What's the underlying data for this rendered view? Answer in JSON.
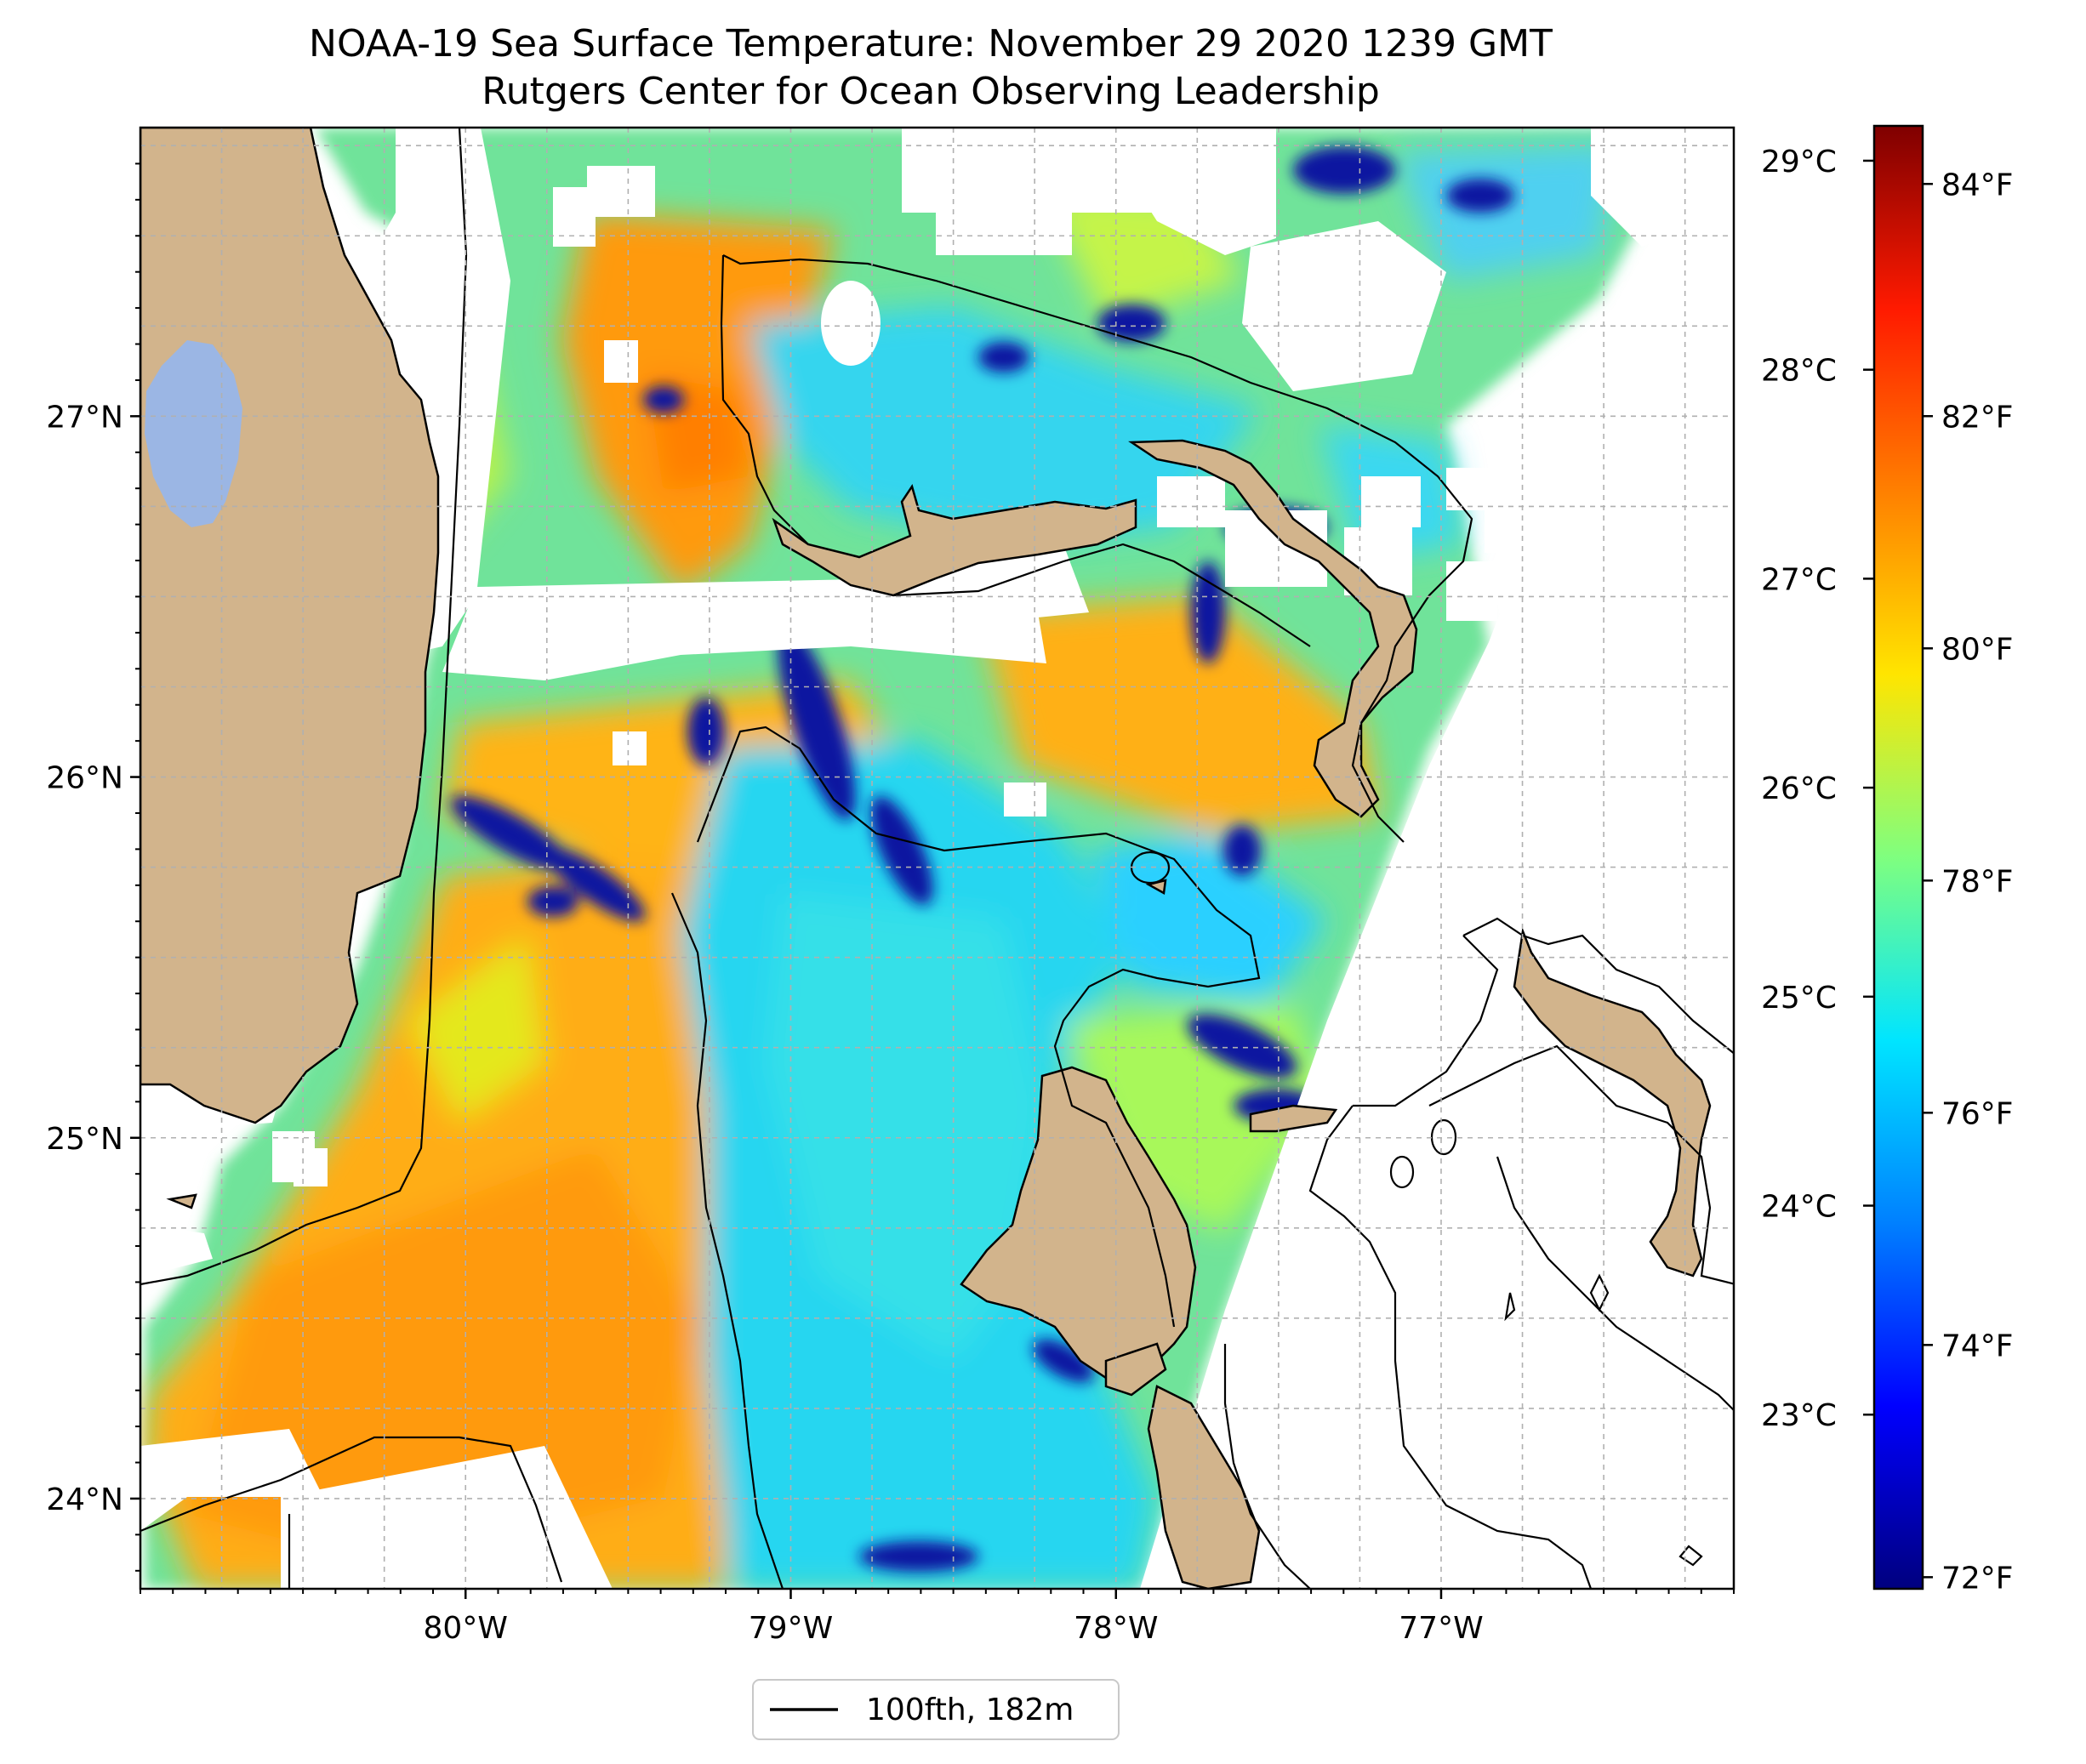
{
  "title": "NOAA-19 Sea Surface Temperature: November 29 2020 1239 GMT",
  "subtitle": "Rutgers Center for Ocean Observing Leadership",
  "legend": {
    "label": "100fth, 182m"
  },
  "colors": {
    "land": "#d2b48c",
    "lake": "#9bb6e4",
    "coast": "#000000",
    "grid": "#b0b0b0",
    "colormap": [
      "#00007f",
      "#0000ff",
      "#0080ff",
      "#00e5ff",
      "#7fff7f",
      "#ffe500",
      "#ff8000",
      "#ff1a00",
      "#7f0000"
    ]
  },
  "chart_data": {
    "type": "heatmap",
    "title": "NOAA-19 Sea Surface Temperature: November 29 2020 1239 GMT",
    "subtitle": "Rutgers Center for Ocean Observing Leadership",
    "x_axis": {
      "ticks": [
        -80,
        -79,
        -78,
        -77
      ],
      "tick_labels": [
        "80°W",
        "79°W",
        "78°W",
        "77°W"
      ],
      "range": [
        -81.0,
        -76.1
      ]
    },
    "y_axis": {
      "ticks": [
        24,
        25,
        26,
        27
      ],
      "tick_labels": [
        "24°N",
        "25°N",
        "26°N",
        "27°N"
      ],
      "range": [
        23.75,
        27.8
      ]
    },
    "colorbar": {
      "celsius_ticks": [
        23,
        24,
        25,
        26,
        27,
        28,
        29
      ],
      "celsius_labels": [
        "23°C",
        "24°C",
        "25°C",
        "26°C",
        "27°C",
        "28°C",
        "29°C"
      ],
      "fahrenheit_ticks": [
        72,
        74,
        76,
        78,
        80,
        82,
        84
      ],
      "fahrenheit_labels": [
        "72°F",
        "74°F",
        "76°F",
        "78°F",
        "80°F",
        "82°F",
        "84°F"
      ],
      "range_f": [
        71.9,
        84.5
      ]
    },
    "grid": true,
    "legend": {
      "entries": [
        "100fth, 182m"
      ],
      "placement": "bottom-center"
    }
  }
}
